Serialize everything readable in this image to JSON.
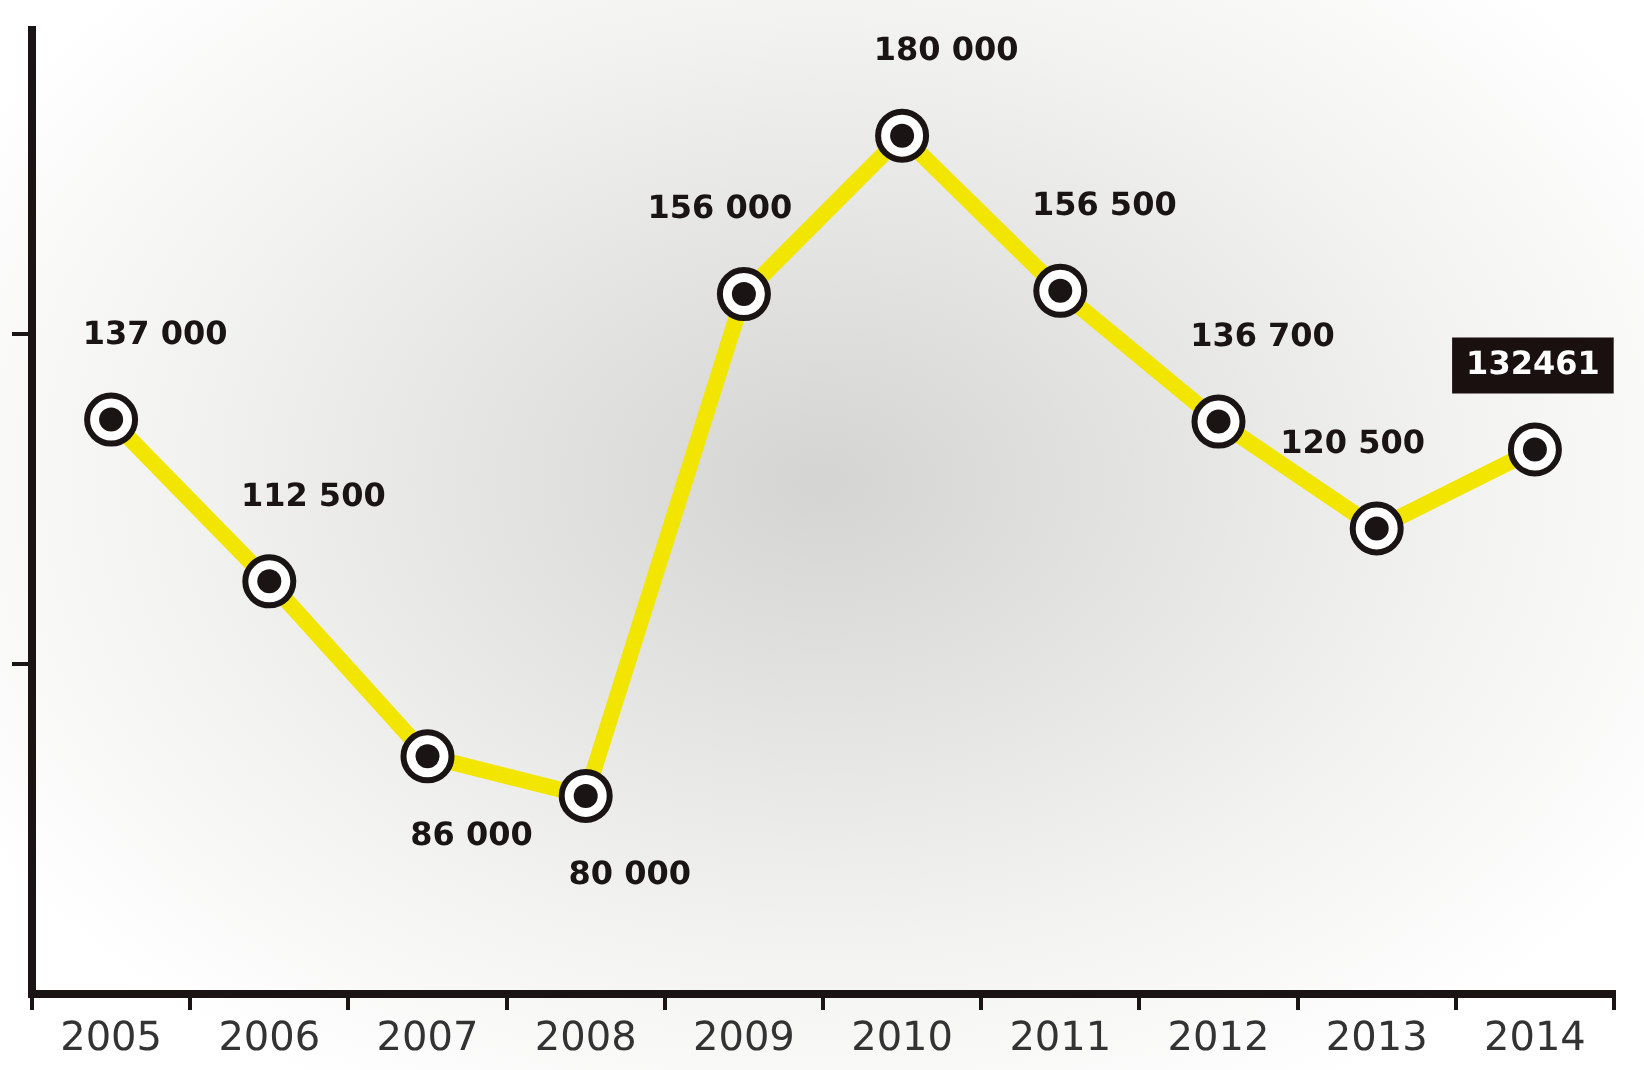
{
  "chart_data": {
    "type": "line",
    "categories": [
      "2005",
      "2006",
      "2007",
      "2008",
      "2009",
      "2010",
      "2011",
      "2012",
      "2013",
      "2014"
    ],
    "series": [
      {
        "color": "#f2e600",
        "values": [
          137000,
          112500,
          86000,
          80000,
          156000,
          180000,
          156500,
          136700,
          120500,
          132461
        ],
        "value_labels": [
          "137 000",
          "112 500",
          "86 000",
          "80 000",
          "156 000",
          "180 000",
          "156 500",
          "136 700",
          "120 500",
          "132461"
        ]
      }
    ],
    "ylim": [
      50000,
      196000
    ],
    "yticks": [
      {
        "value": 100000,
        "label": null
      },
      {
        "value": 150000,
        "label": null
      }
    ],
    "tick_labels": "x",
    "grid": false,
    "legend": false,
    "marker": "circle",
    "line_style": "solid"
  }
}
